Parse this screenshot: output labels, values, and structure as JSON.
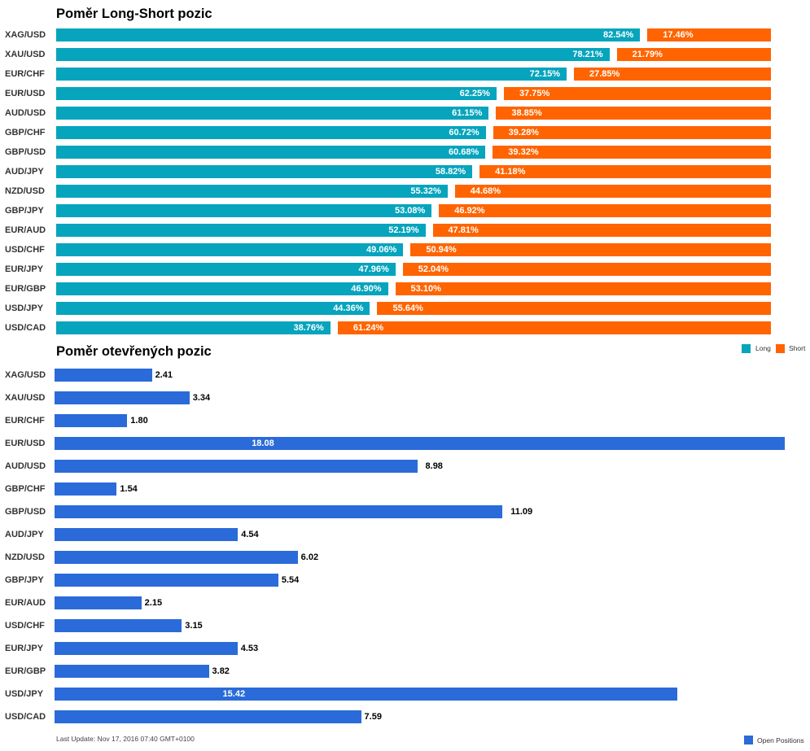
{
  "chart_data": [
    {
      "type": "bar",
      "orientation": "horizontal",
      "stacked": true,
      "title": "Poměr Long-Short pozic",
      "categories": [
        "XAG/USD",
        "XAU/USD",
        "EUR/CHF",
        "EUR/USD",
        "AUD/USD",
        "GBP/CHF",
        "GBP/USD",
        "AUD/JPY",
        "NZD/USD",
        "GBP/JPY",
        "EUR/AUD",
        "USD/CHF",
        "EUR/JPY",
        "EUR/GBP",
        "USD/JPY",
        "USD/CAD"
      ],
      "series": [
        {
          "name": "Long",
          "color": "#06a4bd",
          "values": [
            82.54,
            78.21,
            72.15,
            62.25,
            61.15,
            60.72,
            60.68,
            58.82,
            55.32,
            53.08,
            52.19,
            49.06,
            47.96,
            46.9,
            44.36,
            38.76
          ]
        },
        {
          "name": "Short",
          "color": "#ff6400",
          "values": [
            17.46,
            21.79,
            27.85,
            37.75,
            38.85,
            39.28,
            39.32,
            41.18,
            44.68,
            46.92,
            47.81,
            50.94,
            52.04,
            53.1,
            55.64,
            61.24
          ]
        }
      ],
      "value_labels": {
        "Long": [
          "82.54%",
          "78.21%",
          "72.15%",
          "62.25%",
          "61.15%",
          "60.72%",
          "60.68%",
          "58.82%",
          "55.32%",
          "53.08%",
          "52.19%",
          "49.06%",
          "47.96%",
          "46.90%",
          "44.36%",
          "38.76%"
        ],
        "Short": [
          "17.46%",
          "21.79%",
          "27.85%",
          "37.75%",
          "38.85%",
          "39.28%",
          "39.32%",
          "41.18%",
          "44.68%",
          "46.92%",
          "47.81%",
          "50.94%",
          "52.04%",
          "53.10%",
          "55.64%",
          "61.24%"
        ]
      },
      "xlim": [
        0,
        100
      ],
      "legend": {
        "placement": "bottom-right",
        "entries": [
          "Long",
          "Short"
        ]
      }
    },
    {
      "type": "bar",
      "orientation": "horizontal",
      "title": "Poměr otevřených pozic",
      "categories": [
        "XAG/USD",
        "XAU/USD",
        "EUR/CHF",
        "EUR/USD",
        "AUD/USD",
        "GBP/CHF",
        "GBP/USD",
        "AUD/JPY",
        "NZD/USD",
        "GBP/JPY",
        "EUR/AUD",
        "USD/CHF",
        "EUR/JPY",
        "EUR/GBP",
        "USD/JPY",
        "USD/CAD"
      ],
      "series": [
        {
          "name": "Open Positions",
          "color": "#2a6bd9",
          "values": [
            2.41,
            3.34,
            1.8,
            18.08,
            8.98,
            1.54,
            11.09,
            4.54,
            6.02,
            5.54,
            2.15,
            3.15,
            4.53,
            3.82,
            15.42,
            7.59
          ]
        }
      ],
      "value_labels": [
        "2.41",
        "3.34",
        "1.80",
        "18.08",
        "8.98",
        "1.54",
        "11.09",
        "4.54",
        "6.02",
        "5.54",
        "2.15",
        "3.15",
        "4.53",
        "3.82",
        "15.42",
        "7.59"
      ],
      "xlim": [
        0,
        18.08
      ],
      "legend": {
        "placement": "bottom-right",
        "entries": [
          "Open Positions"
        ]
      }
    }
  ],
  "footnote": "Last Update: Nov 17, 2016 07:40 GMT+0100"
}
